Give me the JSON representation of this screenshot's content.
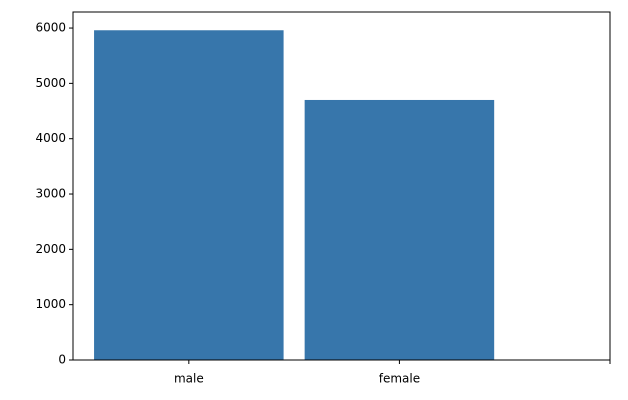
{
  "chart_data": {
    "type": "bar",
    "categories": [
      "male",
      "female",
      null
    ],
    "values": [
      5960,
      4700,
      null
    ],
    "color": "#3776ab",
    "xlim": [
      -0.55,
      2
    ],
    "ylim": [
      0,
      6290
    ],
    "yticks": [
      0,
      1000,
      2000,
      3000,
      4000,
      5000,
      6000
    ],
    "grid": false
  }
}
